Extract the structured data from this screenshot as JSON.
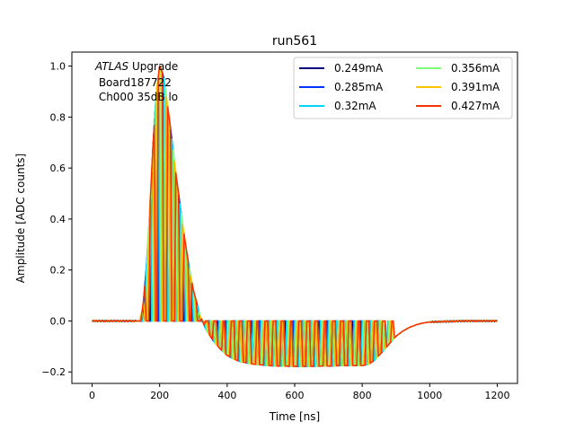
{
  "chart_data": {
    "type": "line",
    "title": "run561",
    "xlabel": "Time [ns]",
    "ylabel": "Amplitude [ADC counts]",
    "xlim": [
      -60,
      1260
    ],
    "ylim": [
      -0.245,
      1.055
    ],
    "xticks": [
      0,
      200,
      400,
      600,
      800,
      1000,
      1200
    ],
    "yticks": [
      -0.2,
      0.0,
      0.2,
      0.4,
      0.6,
      0.8,
      1.0
    ],
    "xtick_labels": [
      "0",
      "200",
      "400",
      "600",
      "800",
      "1000",
      "1200"
    ],
    "ytick_labels": [
      "−0.2",
      "0.0",
      "0.2",
      "0.4",
      "0.6",
      "0.8",
      "1.0"
    ],
    "grid": false,
    "legend": {
      "placement": "top-right",
      "columns": 2
    },
    "annotation": {
      "italic": "ATLAS",
      "rest": " Upgrade",
      "line2": " Board187722",
      "line3": " Ch000 35dB lo"
    },
    "series": [
      {
        "name": "0.249mA",
        "color": "#00007f"
      },
      {
        "name": "0.285mA",
        "color": "#0033ff"
      },
      {
        "name": "0.32mA",
        "color": "#00d5ff"
      },
      {
        "name": "0.356mA",
        "color": "#7cff79"
      },
      {
        "name": "0.391mA",
        "color": "#ffc400"
      },
      {
        "name": "0.427mA",
        "color": "#ff3000"
      }
    ],
    "envelope": {
      "x": [
        0,
        140,
        150,
        160,
        170,
        180,
        190,
        200,
        210,
        220,
        230,
        240,
        250,
        260,
        270,
        280,
        290,
        300,
        310,
        320,
        340,
        360,
        380,
        400,
        420,
        440,
        460,
        480,
        500,
        520,
        550,
        600,
        650,
        700,
        750,
        800,
        820,
        840,
        860,
        880,
        900,
        920,
        940,
        960,
        980,
        1000,
        1050,
        1100,
        1150,
        1200
      ],
      "y": [
        0.0,
        0.0,
        0.05,
        0.2,
        0.42,
        0.68,
        0.9,
        1.0,
        0.97,
        0.88,
        0.78,
        0.67,
        0.56,
        0.46,
        0.36,
        0.27,
        0.19,
        0.12,
        0.07,
        0.02,
        -0.04,
        -0.08,
        -0.11,
        -0.135,
        -0.15,
        -0.16,
        -0.165,
        -0.17,
        -0.172,
        -0.175,
        -0.177,
        -0.178,
        -0.178,
        -0.177,
        -0.175,
        -0.175,
        -0.17,
        -0.15,
        -0.12,
        -0.09,
        -0.06,
        -0.04,
        -0.025,
        -0.015,
        -0.008,
        -0.004,
        -0.002,
        0.0,
        0.0,
        0.0
      ]
    },
    "sample_period_ns": 25
  }
}
